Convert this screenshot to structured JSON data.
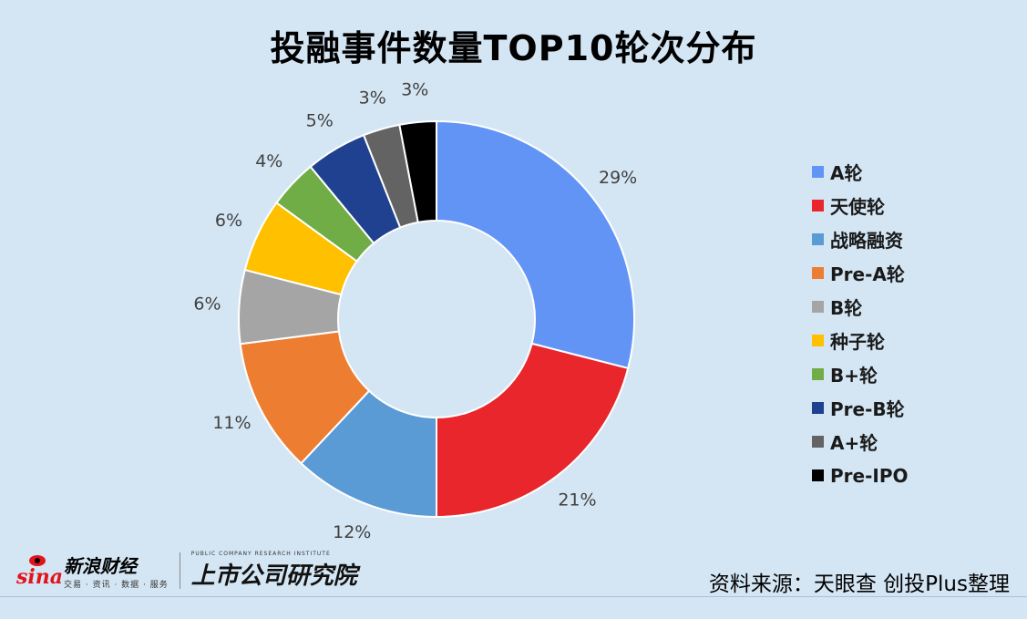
{
  "title": "投融事件数量TOP10轮次分布",
  "chart_data": {
    "type": "donut",
    "title": "投融事件数量TOP10轮次分布",
    "legend_position": "right",
    "slices": [
      {
        "label": "A轮",
        "value": 29,
        "display": "29%",
        "color": "#6194f5"
      },
      {
        "label": "天使轮",
        "value": 21,
        "display": "21%",
        "color": "#e8262b"
      },
      {
        "label": "战略融资",
        "value": 12,
        "display": "12%",
        "color": "#5b9bd5"
      },
      {
        "label": "Pre-A轮",
        "value": 11,
        "display": "11%",
        "color": "#ed7d31"
      },
      {
        "label": "B轮",
        "value": 6,
        "display": "6%",
        "color": "#a5a5a5"
      },
      {
        "label": "种子轮",
        "value": 6,
        "display": "6%",
        "color": "#ffc000"
      },
      {
        "label": "B+轮",
        "value": 4,
        "display": "4%",
        "color": "#70ad47"
      },
      {
        "label": "Pre-B轮",
        "value": 5,
        "display": "5%",
        "color": "#1f418f"
      },
      {
        "label": "A+轮",
        "value": 3,
        "display": "3%",
        "color": "#636363"
      },
      {
        "label": "Pre-IPO",
        "value": 3,
        "display": "3%",
        "color": "#000000"
      }
    ]
  },
  "footer": {
    "sina_logo_text": "sina",
    "sina_name": "新浪财经",
    "sina_tagline": "交易 · 资讯 · 数据 · 服务",
    "institute_en": "PUBLIC COMPANY RESEARCH INSTITUTE",
    "institute_cn": "上市公司研究院",
    "source": "资料来源：天眼查 创投Plus整理"
  }
}
